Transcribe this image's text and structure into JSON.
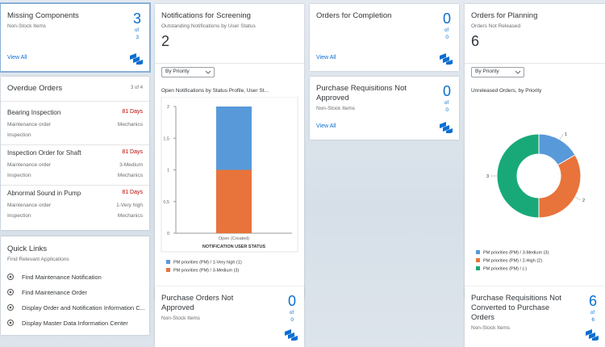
{
  "cards": [
    {
      "title": "Missing Components",
      "subtitle": "Non-Stock Items",
      "kpi": 3,
      "of": "of",
      "total": 3,
      "link": "View All"
    },
    {
      "title": "Notifications for Screening",
      "subtitle": "Outstanding Notifications by User Status",
      "kpi": 2,
      "filter": "By Priority",
      "chart": {
        "type": "bar",
        "title": "Open Notifications by Status Profile, User St...",
        "categories": [
          "Open (Created)"
        ],
        "x_label": "NOTIFICATION USER STATUS",
        "stacked": true,
        "series": [
          {
            "name": "PM priorities (PM) / 1-Very high (1)",
            "color": "#5899da",
            "values": [
              1
            ]
          },
          {
            "name": "PM priorities (PM) / 3-Medium (3)",
            "color": "#e8743b",
            "values": [
              1
            ]
          }
        ],
        "ylim": [
          0,
          2
        ],
        "yticks": [
          0,
          {
            "value": 0.5,
            "label": "0,5"
          },
          1,
          {
            "value": 1.5,
            "label": "1,5"
          },
          2
        ]
      }
    },
    {
      "title": "Orders for Completion",
      "kpi": 0,
      "of": "of",
      "total": 0,
      "link": "View All"
    },
    {
      "title": "Orders for Planning",
      "subtitle": "Orders Not Released",
      "kpi": 6,
      "filter": "By Priority",
      "chart": {
        "type": "donut",
        "title": "Unreleased Orders, by Priority",
        "categories": [
          "PM priorities (PM) / 3-Medium (3)",
          "PM priorities (PM) / 2-High (2)",
          "PM priorities (PM) / (-)"
        ],
        "values": [
          1,
          2,
          3
        ],
        "colors": [
          "#5899da",
          "#e8743b",
          "#19a979"
        ]
      }
    },
    {
      "title": "Purchase Requisitions Not Approved",
      "subtitle": "Non-Stock Items",
      "kpi": 0,
      "of": "of",
      "total": 0,
      "link": "View All"
    },
    {
      "title": "Overdue Orders",
      "count": "3 of 4",
      "items": [
        {
          "title": "Bearing Inspection",
          "status": "81 Days",
          "lines": [
            [
              "Maintenance order",
              "Mechanics"
            ],
            [
              "Inspection"
            ]
          ]
        },
        {
          "title": "Inspection Order for Shaft",
          "status": "81 Days",
          "lines": [
            [
              "Maintenance order",
              "3-Medium"
            ],
            [
              "Inspection",
              "Mechanics"
            ]
          ]
        },
        {
          "title": "Abnormal Sound in Pump",
          "status": "81 Days",
          "lines": [
            [
              "Maintenance order",
              "1-Very high"
            ],
            [
              "Inspection",
              "Mechanics"
            ]
          ]
        }
      ]
    },
    {
      "title": "Quick Links",
      "subtitle": "Find Relevant Applications",
      "links": [
        "Find Maintenance Notification",
        "Find Maintenance Order",
        "Display Order and Notification Information C...",
        "Display Master Data Information Center"
      ]
    },
    {
      "title": "Purchase Orders Not Approved",
      "subtitle": "Non-Stock Items",
      "kpi": 0,
      "of": "of",
      "total": 0
    },
    {
      "title": "Purchase Requisitions Not Converted to Purchase Orders",
      "subtitle": "Non-Stock Items",
      "kpi": 6,
      "of": "of",
      "total": 6
    }
  ]
}
